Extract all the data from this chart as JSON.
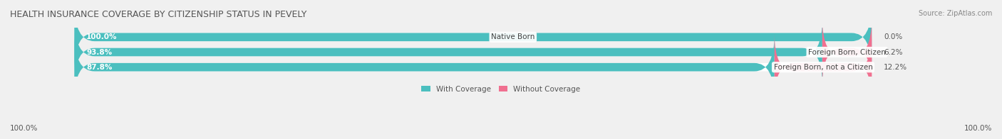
{
  "title": "HEALTH INSURANCE COVERAGE BY CITIZENSHIP STATUS IN PEVELY",
  "source": "Source: ZipAtlas.com",
  "categories": [
    "Native Born",
    "Foreign Born, Citizen",
    "Foreign Born, not a Citizen"
  ],
  "with_coverage": [
    100.0,
    93.8,
    87.8
  ],
  "without_coverage": [
    0.0,
    6.2,
    12.2
  ],
  "color_with": "#4bbfbf",
  "color_without": "#f07090",
  "bg_color": "#f0f0f0",
  "bar_bg_color": "#ffffff",
  "title_fontsize": 9,
  "label_fontsize": 7.5,
  "legend_fontsize": 7.5,
  "source_fontsize": 7,
  "axis_label_left": "100.0%",
  "axis_label_right": "100.0%"
}
